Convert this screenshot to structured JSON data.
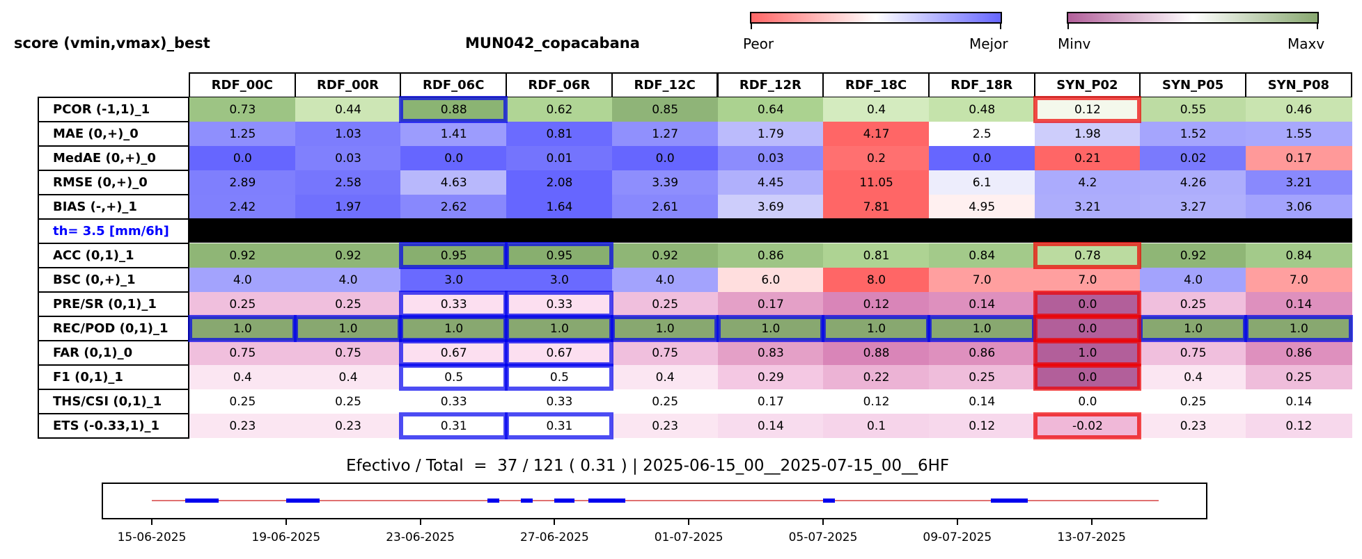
{
  "left_title": "score (vmin,vmax)_best",
  "station_title": "MUN042_copacabana",
  "colorbars": {
    "left": {
      "from_label": "Peor",
      "to_label": "Mejor",
      "color_from": "#ff6666",
      "color_mid": "#ffffff",
      "color_to": "#6666ff"
    },
    "right": {
      "from_label": "Minv",
      "to_label": "Maxv",
      "color_from": "#b25f9a",
      "color_mid": "#ffffff",
      "color_to": "#88a870"
    }
  },
  "chart_data": [
    {
      "type": "heatmap",
      "columns": [
        "RDF_00C",
        "RDF_00R",
        "RDF_06C",
        "RDF_06R",
        "RDF_12C",
        "RDF_12R",
        "RDF_18C",
        "RDF_18R",
        "SYN_P02",
        "SYN_P05",
        "SYN_P08"
      ],
      "rows": [
        {
          "label": "PCOR (-1,1)_1",
          "values": [
            "0.73",
            "0.44",
            "0.88",
            "0.62",
            "0.85",
            "0.64",
            "0.4",
            "0.48",
            "0.12",
            "0.55",
            "0.46"
          ],
          "colors": [
            "#9dc484",
            "#cde6b5",
            "#8bb473",
            "#b0d595",
            "#8fb478",
            "#abd290",
            "#d4ebbf",
            "#c5e3ab",
            "#f4f8ec",
            "#bddca3",
            "#c9e4b0"
          ]
        },
        {
          "label": "MAE (0,+)_0",
          "values": [
            "1.25",
            "1.03",
            "1.41",
            "0.81",
            "1.27",
            "1.79",
            "4.17",
            "2.5",
            "1.98",
            "1.52",
            "1.55"
          ],
          "colors": [
            "#8f8ffd",
            "#7d7dfd",
            "#9c9cfd",
            "#6b6bff",
            "#9090fd",
            "#bbbbfc",
            "#ff6666",
            "#ffffff",
            "#cdcdfb",
            "#a5a5fd",
            "#a8a8fd"
          ]
        },
        {
          "label": "MedAE (0,+)_0",
          "values": [
            "0.0",
            "0.03",
            "0.0",
            "0.01",
            "0.0",
            "0.03",
            "0.2",
            "0.0",
            "0.21",
            "0.02",
            "0.17"
          ],
          "colors": [
            "#6666ff",
            "#8080fd",
            "#6666ff",
            "#7474fd",
            "#6666ff",
            "#8c8cfd",
            "#ff7070",
            "#6666ff",
            "#ff6666",
            "#7a7afd",
            "#ff9999"
          ]
        },
        {
          "label": "RMSE (0,+)_0",
          "values": [
            "2.89",
            "2.58",
            "4.63",
            "2.08",
            "3.39",
            "4.45",
            "11.05",
            "6.1",
            "4.2",
            "4.26",
            "3.21"
          ],
          "colors": [
            "#7f7ffd",
            "#7676fd",
            "#b8b8fc",
            "#6666ff",
            "#8e8efd",
            "#b0b0fc",
            "#ff6666",
            "#ededfc",
            "#ababfd",
            "#adadfc",
            "#8989fd"
          ]
        },
        {
          "label": "BIAS (-,+)_1",
          "values": [
            "2.42",
            "1.97",
            "2.62",
            "1.64",
            "2.61",
            "3.69",
            "7.81",
            "4.95",
            "3.21",
            "3.27",
            "3.06"
          ],
          "colors": [
            "#8080fd",
            "#7070fd",
            "#8888fd",
            "#6666ff",
            "#8888fd",
            "#cdcdfb",
            "#ff6666",
            "#fff0f0",
            "#adadfc",
            "#b0b0fc",
            "#a3a3fd"
          ]
        },
        {
          "label": "th= 3.5 [mm/6h]",
          "separator": true,
          "values": [],
          "colors": []
        },
        {
          "label": "ACC (0,1)_1",
          "values": [
            "0.92",
            "0.92",
            "0.95",
            "0.95",
            "0.92",
            "0.86",
            "0.81",
            "0.84",
            "0.78",
            "0.92",
            "0.84"
          ],
          "colors": [
            "#8fb676",
            "#8fb676",
            "#88af6f",
            "#88af6f",
            "#8fb676",
            "#9ec585",
            "#aed393",
            "#a3ca8a",
            "#bbdba0",
            "#8fb676",
            "#a3ca8a"
          ]
        },
        {
          "label": "BSC (0,+)_1",
          "values": [
            "4.0",
            "4.0",
            "3.0",
            "3.0",
            "4.0",
            "6.0",
            "8.0",
            "7.0",
            "7.0",
            "4.0",
            "7.0"
          ],
          "colors": [
            "#a3a3fd",
            "#a3a3fd",
            "#6a6aff",
            "#6a6aff",
            "#a3a3fd",
            "#ffdede",
            "#ff6666",
            "#ff9f9f",
            "#ff9f9f",
            "#a3a3fd",
            "#ff9f9f"
          ]
        },
        {
          "label": "PRE/SR (0,1)_1",
          "values": [
            "0.25",
            "0.25",
            "0.33",
            "0.33",
            "0.25",
            "0.17",
            "0.12",
            "0.14",
            "0.0",
            "0.25",
            "0.14"
          ],
          "colors": [
            "#f0bfdd",
            "#f0bfdd",
            "#fcdff0",
            "#fcdff0",
            "#f0bfdd",
            "#e4a0c7",
            "#d985b8",
            "#de90be",
            "#b25f9a",
            "#f0bfdd",
            "#de90be"
          ]
        },
        {
          "label": "REC/POD (0,1)_1",
          "values": [
            "1.0",
            "1.0",
            "1.0",
            "1.0",
            "1.0",
            "1.0",
            "1.0",
            "1.0",
            "0.0",
            "1.0",
            "1.0"
          ],
          "colors": [
            "#88a870",
            "#88a870",
            "#88a870",
            "#88a870",
            "#88a870",
            "#88a870",
            "#88a870",
            "#88a870",
            "#b25f9a",
            "#88a870",
            "#88a870"
          ]
        },
        {
          "label": "FAR (0,1)_0",
          "values": [
            "0.75",
            "0.75",
            "0.67",
            "0.67",
            "0.75",
            "0.83",
            "0.88",
            "0.86",
            "1.0",
            "0.75",
            "0.86"
          ],
          "colors": [
            "#f0bfdd",
            "#f0bfdd",
            "#fcdff0",
            "#fcdff0",
            "#f0bfdd",
            "#e4a0c7",
            "#d985b8",
            "#de90be",
            "#b25f9a",
            "#f0bfdd",
            "#de90be"
          ]
        },
        {
          "label": "F1 (0,1)_1",
          "values": [
            "0.4",
            "0.4",
            "0.5",
            "0.5",
            "0.4",
            "0.29",
            "0.22",
            "0.25",
            "0.0",
            "0.4",
            "0.25"
          ],
          "colors": [
            "#fbe6f2",
            "#fbe6f2",
            "#ffffff",
            "#ffffff",
            "#fbe6f2",
            "#f4c8e3",
            "#ecb3d5",
            "#efbddb",
            "#b25f9a",
            "#fbe6f2",
            "#efbddb"
          ]
        },
        {
          "label": "THS/CSI (0,1)_1",
          "values": [
            "0.25",
            "0.25",
            "0.33",
            "0.33",
            "0.25",
            "0.17",
            "0.12",
            "0.14",
            "0.0",
            "0.25",
            "0.14"
          ],
          "colors": [
            "#ffffff",
            "#ffffff",
            "#ffffff",
            "#ffffff",
            "#ffffff",
            "#ffffff",
            "#ffffff",
            "#ffffff",
            "#ffffff",
            "#ffffff",
            "#ffffff"
          ]
        },
        {
          "label": "ETS (-0.33,1)_1",
          "values": [
            "0.23",
            "0.23",
            "0.31",
            "0.31",
            "0.23",
            "0.14",
            "0.1",
            "0.12",
            "-0.02",
            "0.23",
            "0.12"
          ],
          "colors": [
            "#fbe6f2",
            "#fbe6f2",
            "#ffffff",
            "#ffffff",
            "#fbe6f2",
            "#f8dcee",
            "#f6d4ea",
            "#f7d8ec",
            "#f0b8d8",
            "#fbe6f2",
            "#f7d8ec"
          ]
        }
      ],
      "highlights": {
        "best_color": "#0000ee",
        "worst_color": "#ee0000",
        "best": [
          [
            0,
            2
          ],
          [
            6,
            2
          ],
          [
            6,
            3
          ],
          [
            8,
            2
          ],
          [
            8,
            3
          ],
          [
            9,
            0
          ],
          [
            9,
            1
          ],
          [
            9,
            2
          ],
          [
            9,
            3
          ],
          [
            9,
            4
          ],
          [
            9,
            5
          ],
          [
            9,
            6
          ],
          [
            9,
            7
          ],
          [
            9,
            9
          ],
          [
            9,
            10
          ],
          [
            10,
            2
          ],
          [
            10,
            3
          ],
          [
            11,
            2
          ],
          [
            11,
            3
          ],
          [
            13,
            2
          ],
          [
            13,
            3
          ]
        ],
        "worst": [
          [
            0,
            8
          ],
          [
            6,
            8
          ],
          [
            8,
            8
          ],
          [
            9,
            8
          ],
          [
            10,
            8
          ],
          [
            11,
            8
          ],
          [
            13,
            8
          ]
        ]
      },
      "separator_color": "#000000",
      "separator_label_color": "#0000ff"
    },
    {
      "type": "timeline",
      "title": "Efectivo / Total  =  37 / 121 ( 0.31 ) | 2025-06-15_00__2025-07-15_00__6HF",
      "x_range": [
        "2025-06-15",
        "2025-07-15"
      ],
      "tick_labels": [
        "15-06-2025",
        "19-06-2025",
        "23-06-2025",
        "27-06-2025",
        "01-07-2025",
        "05-07-2025",
        "09-07-2025",
        "13-07-2025"
      ],
      "baseline_color": "#e07070",
      "segment_color": "#0000ee",
      "effective_segments": [
        [
          "2025-06-16",
          "2025-06-17"
        ],
        [
          "2025-06-19",
          "2025-06-20"
        ],
        [
          "2025-06-25",
          "2025-06-25.35"
        ],
        [
          "2025-06-26",
          "2025-06-26.35"
        ],
        [
          "2025-06-27",
          "2025-06-27.6"
        ],
        [
          "2025-06-28",
          "2025-06-29.1"
        ],
        [
          "2025-07-05",
          "2025-07-05.35"
        ],
        [
          "2025-07-10",
          "2025-07-11.1"
        ]
      ]
    }
  ]
}
